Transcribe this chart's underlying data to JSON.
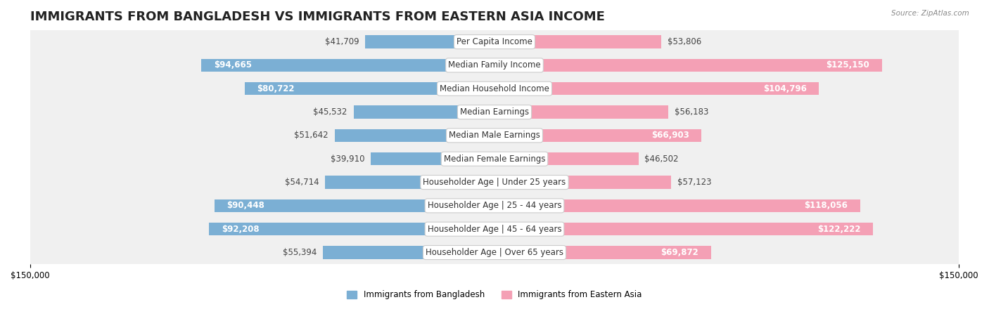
{
  "title": "IMMIGRANTS FROM BANGLADESH VS IMMIGRANTS FROM EASTERN ASIA INCOME",
  "source": "Source: ZipAtlas.com",
  "categories": [
    "Per Capita Income",
    "Median Family Income",
    "Median Household Income",
    "Median Earnings",
    "Median Male Earnings",
    "Median Female Earnings",
    "Householder Age | Under 25 years",
    "Householder Age | 25 - 44 years",
    "Householder Age | 45 - 64 years",
    "Householder Age | Over 65 years"
  ],
  "bangladesh_values": [
    41709,
    94665,
    80722,
    45532,
    51642,
    39910,
    54714,
    90448,
    92208,
    55394
  ],
  "eastern_asia_values": [
    53806,
    125150,
    104796,
    56183,
    66903,
    46502,
    57123,
    118056,
    122222,
    69872
  ],
  "bangladesh_color": "#7bafd4",
  "eastern_asia_color": "#f4a0b5",
  "bangladesh_label_color_high": "#ffffff",
  "bangladesh_label_color_low": "#555555",
  "eastern_asia_label_color_high": "#ffffff",
  "eastern_asia_label_color_low": "#555555",
  "row_bg_color": "#f0f0f0",
  "bar_height": 0.55,
  "max_value": 150000,
  "legend_bangladesh": "Immigrants from Bangladesh",
  "legend_eastern_asia": "Immigrants from Eastern Asia",
  "title_fontsize": 13,
  "label_fontsize": 8.5,
  "category_fontsize": 8.5,
  "axis_label_fontsize": 8.5,
  "background_color": "#ffffff",
  "high_value_threshold_bangladesh": 60000,
  "high_value_threshold_eastern_asia": 60000
}
